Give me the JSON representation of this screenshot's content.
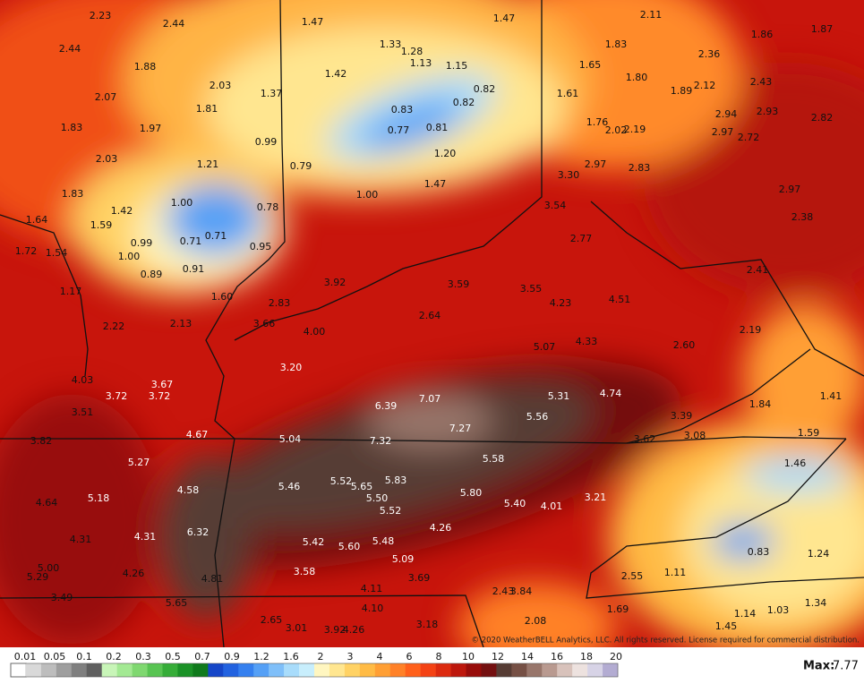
{
  "map": {
    "labels": [
      "2.23",
      "2.44",
      "2.44",
      "1.88",
      "2.07",
      "2.03",
      "1.81",
      "1.83",
      "1.97",
      "2.03",
      "1.21",
      "1.83",
      "1.42",
      "1.59",
      "1.64",
      "1.72",
      "1.54",
      "0.99",
      "1.00",
      "1.00",
      "0.71",
      "0.71",
      "0.89",
      "0.91",
      "1.17",
      "2.22",
      "2.13",
      "1.60",
      "0.78",
      "0.95",
      "0.79",
      "0.99",
      "1.37",
      "1.47",
      "1.42",
      "1.33",
      "1.28",
      "1.13",
      "1.15",
      "0.82",
      "0.82",
      "0.83",
      "0.77",
      "0.81",
      "1.20",
      "1.47",
      "1.00",
      "1.47",
      "2.11",
      "1.86",
      "1.87",
      "1.83",
      "1.65",
      "1.80",
      "2.36",
      "2.43",
      "1.89",
      "2.12",
      "1.61",
      "2.94",
      "2.93",
      "2.82",
      "1.76",
      "2.02",
      "2.19",
      "2.97",
      "2.72",
      "3.30",
      "2.97",
      "2.83",
      "2.97",
      "2.38",
      "3.54",
      "2.77",
      "2.41",
      "2.83",
      "3.92",
      "3.59",
      "3.55",
      "4.23",
      "4.51",
      "2.64",
      "3.66",
      "4.00",
      "5.07",
      "4.33",
      "2.60",
      "2.19",
      "3.20",
      "4.03",
      "3.67",
      "3.72",
      "3.72",
      "3.51",
      "6.39",
      "7.07",
      "5.31",
      "4.74",
      "5.56",
      "7.27",
      "1.41",
      "1.84",
      "3.39",
      "4.67",
      "5.04",
      "7.32",
      "3.62",
      "3.08",
      "1.59",
      "3.82",
      "5.27",
      "5.58",
      "1.46",
      "5.46",
      "5.52",
      "5.65",
      "5.83",
      "4.58",
      "5.18",
      "5.50",
      "5.80",
      "3.21",
      "4.64",
      "5.40",
      "4.01",
      "5.52",
      "4.31",
      "4.31",
      "6.32",
      "4.26",
      "5.42",
      "5.60",
      "5.48",
      "0.83",
      "1.24",
      "5.00",
      "5.29",
      "4.26",
      "4.81",
      "3.58",
      "5.09",
      "3.69",
      "1.11",
      "2.55",
      "3.49",
      "4.11",
      "2.43",
      "3.84",
      "5.65",
      "4.10",
      "1.69",
      "1.34",
      "1.14",
      "1.03",
      "2.65",
      "3.01",
      "3.92",
      "4.26",
      "3.18",
      "2.08",
      "1.45"
    ],
    "copyright": "© 2020 WeatherBELL Analytics, LLC. All rights reserved. License required for commercial distribution."
  },
  "legend": {
    "ticks": [
      "0.01",
      "0.05",
      "0.1",
      "0.2",
      "0.3",
      "0.5",
      "0.7",
      "0.9",
      "1.2",
      "1.6",
      "2",
      "3",
      "4",
      "6",
      "8",
      "10",
      "12",
      "14",
      "16",
      "18",
      "20"
    ],
    "colors": [
      "#ffffff",
      "#d9d9d9",
      "#bdbdbd",
      "#9e9e9e",
      "#7f7f7f",
      "#5f5f5f",
      "#c8f5b8",
      "#a3e993",
      "#7fd870",
      "#58c452",
      "#36ad38",
      "#1b9227",
      "#0f7a1c",
      "#1546c8",
      "#2262e0",
      "#3580ef",
      "#55a0f6",
      "#7fbff9",
      "#a8dcfb",
      "#c8eefc",
      "#fff6c0",
      "#ffe690",
      "#ffd264",
      "#ffbb45",
      "#ff9f34",
      "#ff8128",
      "#ff601b",
      "#f44214",
      "#dc2a0f",
      "#bd170c",
      "#980c0a",
      "#741010",
      "#563c34",
      "#765045",
      "#98766b",
      "#b99a90",
      "#d8c2bb",
      "#ede2df",
      "#d7d3e6",
      "#b3acd2"
    ],
    "max_label": "Max:",
    "max_value": "7.77"
  }
}
